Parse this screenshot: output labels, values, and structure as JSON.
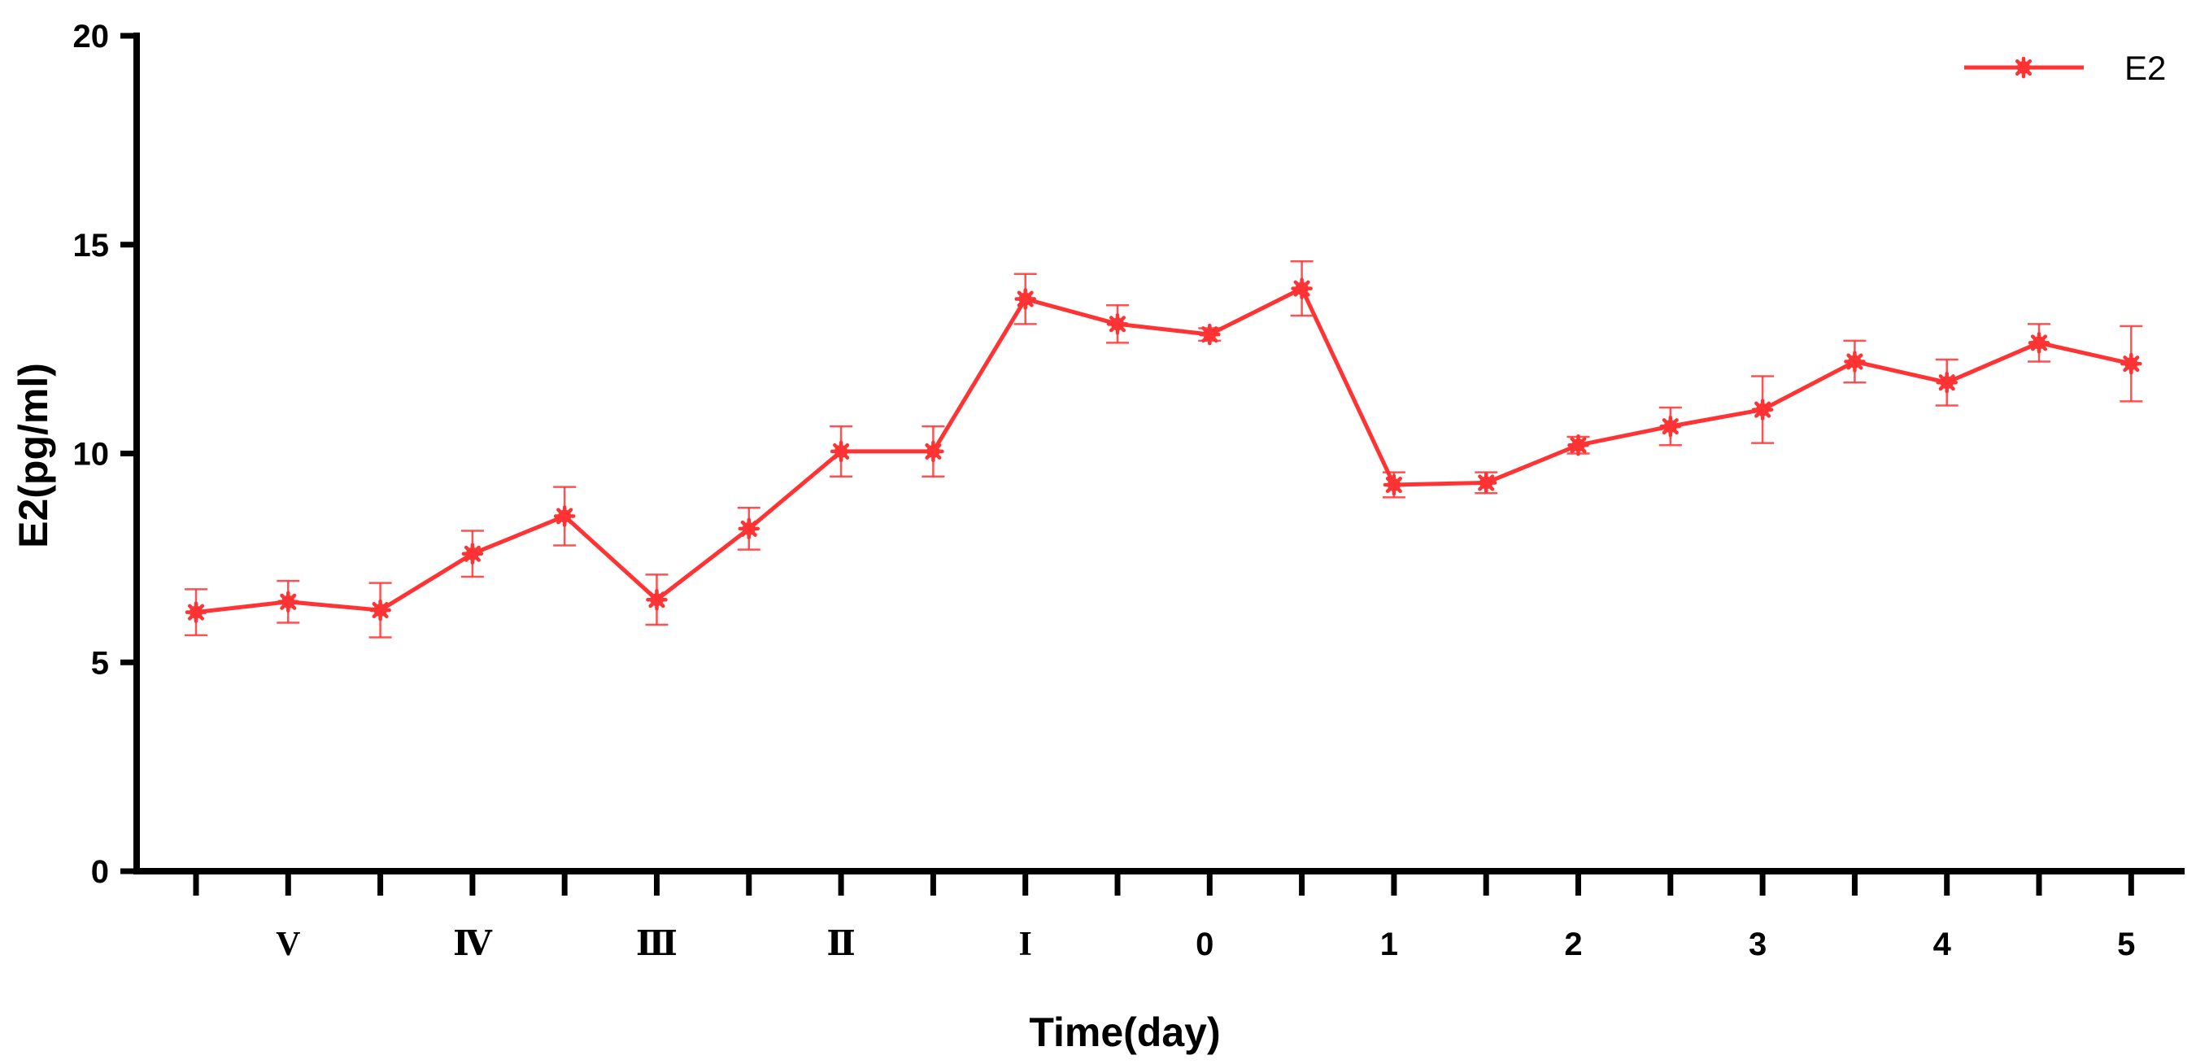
{
  "chart_data": {
    "type": "line",
    "title": "",
    "xlabel": "Time(day)",
    "ylabel": "E2(pg/ml)",
    "ylim": [
      0,
      20
    ],
    "y_ticks": [
      "0",
      "5",
      "10",
      "15",
      "20"
    ],
    "x_tick_labels": [
      "V",
      "Ⅳ",
      "Ⅲ",
      "Ⅱ",
      "I",
      "0",
      "1",
      "2",
      "3",
      "4",
      "5"
    ],
    "series": [
      {
        "name": "E2",
        "color": "#ff3333",
        "marker": "asterisk",
        "values": [
          6.2,
          6.45,
          6.25,
          7.6,
          8.5,
          6.5,
          8.2,
          10.05,
          10.05,
          13.7,
          13.1,
          12.85,
          13.95,
          9.25,
          9.3,
          10.2,
          10.65,
          11.05,
          12.2,
          11.7,
          12.65,
          12.15
        ],
        "error": [
          0.55,
          0.5,
          0.65,
          0.55,
          0.7,
          0.6,
          0.5,
          0.6,
          0.6,
          0.6,
          0.45,
          0.15,
          0.65,
          0.3,
          0.25,
          0.2,
          0.45,
          0.8,
          0.5,
          0.55,
          0.45,
          0.9
        ]
      }
    ],
    "legend_position": "top-right",
    "grid": false
  }
}
